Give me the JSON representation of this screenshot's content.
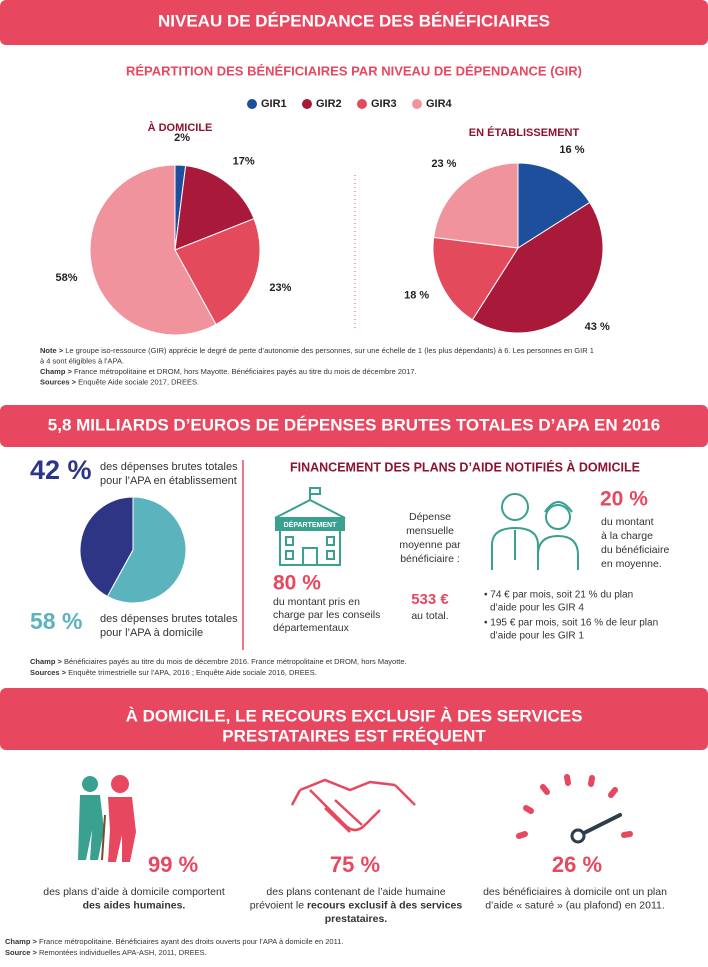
{
  "header": {
    "title": "NIVEAU DE DÉPENDANCE DES BÉNÉFICIAIRES",
    "subtitle": "RÉPARTITION DES BÉNÉFICIAIRES PAR NIVEAU DE DÉPENDANCE (GIR)"
  },
  "chart_data": [
    {
      "type": "pie",
      "title": "À DOMICILE",
      "categories": [
        "GIR1",
        "GIR2",
        "GIR3",
        "GIR4"
      ],
      "colors": [
        "#1d4f9c",
        "#a8193a",
        "#e34a5c",
        "#f0939c"
      ],
      "values": [
        2,
        17,
        23,
        58
      ],
      "value_labels": [
        "2%",
        "17%",
        "23%",
        "58%"
      ]
    },
    {
      "type": "pie",
      "title": "EN ÉTABLISSEMENT",
      "colors": [
        "#1d4f9c",
        "#a8193a",
        "#e34a5c",
        "#f0939c"
      ],
      "values": [
        16,
        43,
        18,
        23
      ],
      "value_labels": [
        "16 %",
        "43 %",
        "18 %",
        "23 %"
      ]
    },
    {
      "type": "pie",
      "categories": [
        [
          "des dépenses brutes totales",
          "pour l’APA en établissement"
        ],
        [
          "des dépenses brutes totales",
          "pour l’APA à domicile"
        ]
      ],
      "colors": [
        "#2d3584",
        "#5bb3be"
      ],
      "values": [
        42,
        58
      ],
      "value_labels": [
        "42 %",
        "58 %"
      ]
    }
  ],
  "notes1": [
    {
      "label": "Note >",
      "text": " Le groupe iso-ressource (GIR) apprécie le degré de perte d’autonomie des personnes, sur une échelle de 1 (les plus dépendants) à 6. Les personnes en GIR 1"
    },
    {
      "text": "à 4 sont éligibles à l’APA."
    },
    {
      "label": "Champ >",
      "text": " France métropolitaine et DROM, hors Mayotte. Bénéficiaires payés au titre du mois de décembre 2017."
    },
    {
      "label": "Sources >",
      "text": " Enquête Aide sociale 2017, DREES."
    }
  ],
  "section2": {
    "title": "5,8 MILLIARDS D’EUROS DE DÉPENSES BRUTES TOTALES D’APA EN 2016",
    "financing_title": "FINANCEMENT DES PLANS D’AIDE NOTIFIÉS À DOMICILE",
    "department_label": "DÉPARTEMENT",
    "department_share": "80 %",
    "department_text": [
      "du montant pris en",
      "charge par les conseils",
      "départementaux"
    ],
    "monthly_text": [
      "Dépense",
      "mensuelle",
      "moyenne par",
      "bénéficiaire :"
    ],
    "monthly_amount": "533 €",
    "monthly_suffix": "au total.",
    "beneficiary_share": "20 %",
    "beneficiary_text": [
      "du montant",
      "à la charge",
      "du bénéficiaire",
      "en moyenne."
    ],
    "bullets": [
      [
        "• 74 € par mois, soit 21 % du plan",
        "d’aide pour les GIR 4"
      ],
      [
        "• 195 € par mois, soit 16 % de leur plan",
        "d’aide pour les GIR 1"
      ]
    ],
    "notes": [
      {
        "label": "Champ >",
        "text": " Bénéficiaires payés au titre du mois de décembre 2016. France métropolitaine et DROM, hors Mayotte."
      },
      {
        "label": "Sources >",
        "text": " Enquête trimestrielle sur l’APA, 2016 ; Enquête Aide sociale 2016, DREES."
      }
    ]
  },
  "section3": {
    "title": [
      "À DOMICILE, LE RECOURS EXCLUSIF À DES SERVICES",
      "PRESTATAIRES EST FRÉQUENT"
    ],
    "stats": [
      {
        "value": "99 %",
        "lines": [
          [
            {
              "t": "des plans d’aide à domicile comportent"
            }
          ],
          [
            {
              "t": "des aides humaines.",
              "b": true
            }
          ]
        ]
      },
      {
        "value": "75 %",
        "lines": [
          [
            {
              "t": "des plans contenant de l’aide humaine"
            }
          ],
          [
            {
              "t": "prévoient le "
            },
            {
              "t": "recours exclusif à des services",
              "b": true
            }
          ],
          [
            {
              "t": "prestataires.",
              "b": true
            }
          ]
        ]
      },
      {
        "value": "26 %",
        "lines": [
          [
            {
              "t": "des bénéficiaires à domicile ont un plan"
            }
          ],
          [
            {
              "t": "d’aide « saturé » (au plafond) en 2011."
            }
          ]
        ]
      }
    ],
    "notes": [
      {
        "label": "Champ >",
        "text": " France métropolitaine. Bénéficiaires ayant des droits ouverts pour l’APA à domicile en 2011."
      },
      {
        "label": "Source >",
        "text": " Remontées individuelles APA-ASH, 2011, DREES."
      }
    ]
  }
}
